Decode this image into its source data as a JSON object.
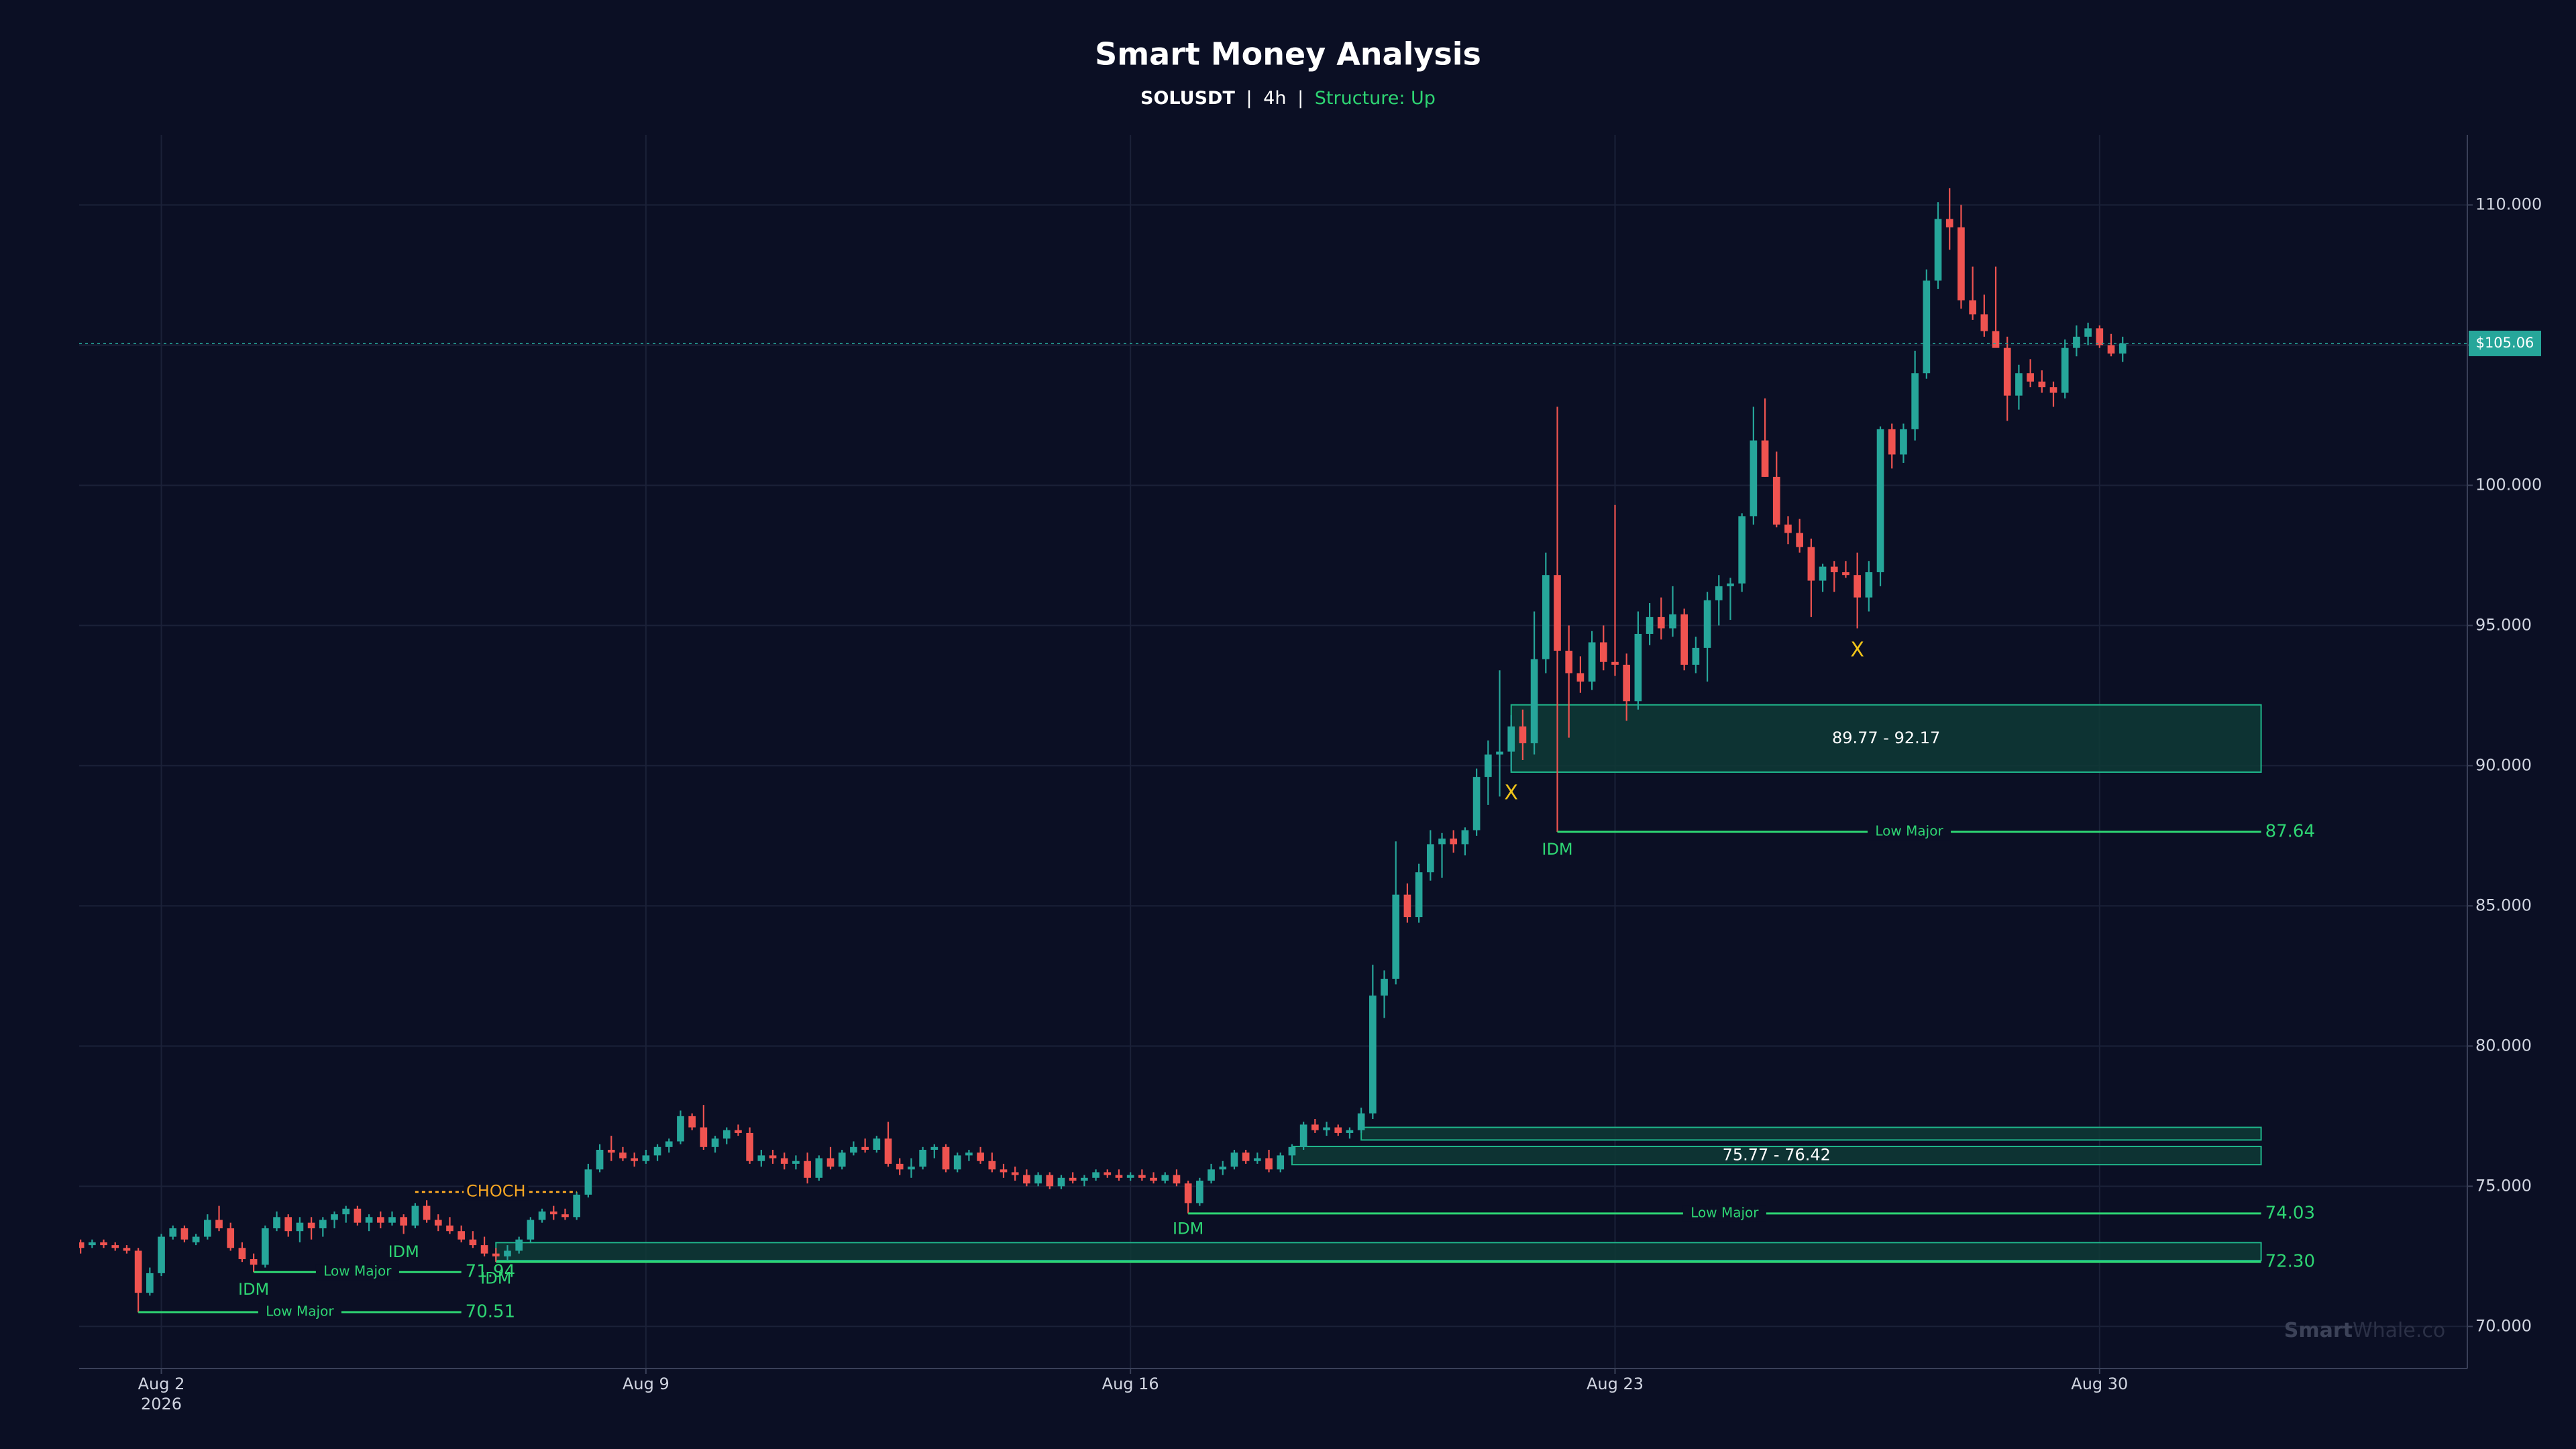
{
  "chart_data": {
    "type": "candlestick",
    "title": "Smart Money Analysis",
    "subtitle": {
      "symbol": "SOLUSDT",
      "separator": "|",
      "timeframe": "4h",
      "structure": "Structure: Up"
    },
    "x": [
      -4,
      0,
      4,
      8,
      12,
      16,
      20,
      24,
      28,
      32,
      36,
      40,
      44,
      48,
      52,
      56,
      60,
      64,
      68,
      72,
      76,
      80,
      84,
      88,
      92,
      96,
      100,
      104,
      108,
      112,
      116,
      120,
      124,
      128,
      132,
      136,
      140,
      144,
      148,
      152,
      156,
      160,
      164,
      168,
      172,
      176,
      180,
      184,
      188,
      192,
      196,
      200,
      204,
      208,
      212,
      216,
      220,
      224,
      228,
      232,
      236,
      240,
      244,
      248,
      252,
      256,
      260,
      264,
      268,
      272,
      276,
      280,
      284,
      288,
      292,
      296,
      300,
      304,
      308,
      312,
      316,
      320,
      324,
      328,
      332,
      336,
      340,
      344,
      348,
      352,
      356,
      360,
      364,
      368,
      372,
      376,
      380,
      384,
      388,
      392,
      396,
      400,
      404,
      408,
      412,
      416,
      420,
      424,
      428,
      432,
      436,
      440,
      444,
      448,
      452,
      456,
      460,
      464,
      468,
      472,
      476,
      480,
      484,
      488,
      492,
      496,
      500,
      504,
      508,
      512,
      516,
      520,
      524,
      528,
      532,
      536,
      540,
      544,
      548,
      552,
      556,
      560,
      564,
      568,
      572,
      576,
      580,
      584,
      588,
      592,
      596,
      600,
      604,
      608,
      612,
      616,
      620,
      624,
      628,
      632,
      636,
      640,
      644,
      648,
      652,
      656,
      660,
      664,
      668,
      672,
      676,
      680,
      684,
      688,
      692,
      696,
      700,
      704
    ],
    "open": [
      73.0,
      72.9,
      73.0,
      72.9,
      72.8,
      72.7,
      71.2,
      71.9,
      73.2,
      73.5,
      73.0,
      73.2,
      73.8,
      73.5,
      72.8,
      72.4,
      72.2,
      73.5,
      73.9,
      73.4,
      73.7,
      73.5,
      73.8,
      74.0,
      74.2,
      73.7,
      73.9,
      73.7,
      73.9,
      73.6,
      74.3,
      73.8,
      73.6,
      73.4,
      73.1,
      72.9,
      72.6,
      72.5,
      72.7,
      73.1,
      73.8,
      74.1,
      74.0,
      73.9,
      74.7,
      75.6,
      76.3,
      76.2,
      76.0,
      75.9,
      76.1,
      76.4,
      76.6,
      77.5,
      77.1,
      76.4,
      76.7,
      77.0,
      76.9,
      75.9,
      76.1,
      76.0,
      75.8,
      75.9,
      75.3,
      76.0,
      75.7,
      76.2,
      76.4,
      76.3,
      76.7,
      75.8,
      75.6,
      75.7,
      76.3,
      76.4,
      75.6,
      76.1,
      76.2,
      75.9,
      75.6,
      75.5,
      75.4,
      75.1,
      75.4,
      75.0,
      75.3,
      75.2,
      75.3,
      75.5,
      75.4,
      75.3,
      75.4,
      75.3,
      75.2,
      75.4,
      75.1,
      74.4,
      75.2,
      75.6,
      75.7,
      76.2,
      75.9,
      76.0,
      75.6,
      76.1,
      76.4,
      77.2,
      77.0,
      77.1,
      76.9,
      77.0,
      77.6,
      81.8,
      82.4,
      85.4,
      84.6,
      86.2,
      87.2,
      87.4,
      87.2,
      87.7,
      89.6,
      90.4,
      90.5,
      91.4,
      90.8,
      93.8,
      96.8,
      94.1,
      93.3,
      93.0,
      94.4,
      93.7,
      93.6,
      92.3,
      94.7,
      95.3,
      94.9,
      95.4,
      93.6,
      94.2,
      95.9,
      96.4,
      96.5,
      98.9,
      101.6,
      100.3,
      98.6,
      98.3,
      97.8,
      96.6,
      97.1,
      96.9,
      96.8,
      96.0,
      96.9,
      102.0,
      101.1,
      102.0,
      104.0,
      107.3,
      109.5,
      109.2,
      106.6,
      106.1,
      105.5,
      104.9,
      103.2,
      104.0,
      103.7,
      103.5,
      103.3,
      104.9,
      105.3,
      105.6,
      105.0,
      104.7
    ],
    "high": [
      73.1,
      73.1,
      73.1,
      73.0,
      72.9,
      72.8,
      72.1,
      73.3,
      73.6,
      73.6,
      73.3,
      74.0,
      74.3,
      73.7,
      73.0,
      72.6,
      73.6,
      74.1,
      74.0,
      73.9,
      73.9,
      73.9,
      74.1,
      74.3,
      74.3,
      74.0,
      74.1,
      74.1,
      74.0,
      74.4,
      74.5,
      74.0,
      73.9,
      73.6,
      73.4,
      73.2,
      72.8,
      72.9,
      73.2,
      73.9,
      74.2,
      74.3,
      74.2,
      74.8,
      75.8,
      76.5,
      76.8,
      76.4,
      76.2,
      76.3,
      76.5,
      76.7,
      77.7,
      77.6,
      77.9,
      76.8,
      77.1,
      77.2,
      77.1,
      76.3,
      76.3,
      76.2,
      76.1,
      76.2,
      76.1,
      76.4,
      76.3,
      76.6,
      76.7,
      76.8,
      77.3,
      76.0,
      76.0,
      76.4,
      76.5,
      76.5,
      76.2,
      76.3,
      76.4,
      76.2,
      75.8,
      75.7,
      75.6,
      75.5,
      75.5,
      75.4,
      75.5,
      75.4,
      75.6,
      75.6,
      75.6,
      75.5,
      75.6,
      75.5,
      75.5,
      75.6,
      75.2,
      75.3,
      75.8,
      75.9,
      76.3,
      76.3,
      76.2,
      76.3,
      76.2,
      76.5,
      77.3,
      77.4,
      77.3,
      77.2,
      77.1,
      77.8,
      82.9,
      82.7,
      87.3,
      85.8,
      86.5,
      87.7,
      87.6,
      87.7,
      87.8,
      89.9,
      90.9,
      93.4,
      91.8,
      92.0,
      95.5,
      97.6,
      102.8,
      95.0,
      93.9,
      94.8,
      95.0,
      99.3,
      94.0,
      95.5,
      95.8,
      96.0,
      96.4,
      95.6,
      94.6,
      96.2,
      96.8,
      96.7,
      99.0,
      102.8,
      103.1,
      101.2,
      98.9,
      98.8,
      98.1,
      97.2,
      97.3,
      97.3,
      97.6,
      97.3,
      102.1,
      102.2,
      102.2,
      104.8,
      107.7,
      110.1,
      110.6,
      110.0,
      107.8,
      106.8,
      107.8,
      105.3,
      104.3,
      104.5,
      104.1,
      103.7,
      105.2,
      105.7,
      105.8,
      105.7,
      105.4,
      105.3
    ],
    "low": [
      72.6,
      72.8,
      72.8,
      72.7,
      72.6,
      70.5,
      71.1,
      71.8,
      73.1,
      73.0,
      72.9,
      73.1,
      73.4,
      72.7,
      72.3,
      71.94,
      72.1,
      73.4,
      73.2,
      73.0,
      73.1,
      73.2,
      73.5,
      73.7,
      73.6,
      73.4,
      73.5,
      73.6,
      73.3,
      73.5,
      73.7,
      73.4,
      73.3,
      73.0,
      72.8,
      72.5,
      72.3,
      72.3,
      72.6,
      73.0,
      73.7,
      73.8,
      73.8,
      73.8,
      74.6,
      75.5,
      75.9,
      75.9,
      75.7,
      75.8,
      75.9,
      76.2,
      76.5,
      77.0,
      76.3,
      76.2,
      76.5,
      76.8,
      75.8,
      75.7,
      75.8,
      75.6,
      75.6,
      75.1,
      75.2,
      75.6,
      75.6,
      76.1,
      76.2,
      76.2,
      75.7,
      75.4,
      75.3,
      75.6,
      76.0,
      75.5,
      75.5,
      75.9,
      75.8,
      75.5,
      75.3,
      75.2,
      75.0,
      75.0,
      74.9,
      74.9,
      75.1,
      75.0,
      75.2,
      75.3,
      75.2,
      75.2,
      75.2,
      75.1,
      75.1,
      75.0,
      74.03,
      74.3,
      75.1,
      75.4,
      75.6,
      75.8,
      75.8,
      75.5,
      75.5,
      75.9,
      76.3,
      76.9,
      76.8,
      76.8,
      76.7,
      76.9,
      77.4,
      81.0,
      82.2,
      84.4,
      84.4,
      85.9,
      86.0,
      86.9,
      86.8,
      87.5,
      88.6,
      88.9,
      89.8,
      90.2,
      90.4,
      93.3,
      87.64,
      91.0,
      92.6,
      92.7,
      93.4,
      93.2,
      91.6,
      92.0,
      94.3,
      94.5,
      94.6,
      93.4,
      93.3,
      93.0,
      95.0,
      95.2,
      96.2,
      98.6,
      100.3,
      98.5,
      97.9,
      97.6,
      95.3,
      96.2,
      96.2,
      96.7,
      94.9,
      95.5,
      96.4,
      100.6,
      100.8,
      101.6,
      103.8,
      107.0,
      108.4,
      106.3,
      105.9,
      105.3,
      105.0,
      102.3,
      102.7,
      103.5,
      103.3,
      102.8,
      103.1,
      104.6,
      105.0,
      104.9,
      104.6,
      104.4
    ],
    "close": [
      72.8,
      73.0,
      72.9,
      72.8,
      72.7,
      71.2,
      71.9,
      73.2,
      73.5,
      73.1,
      73.2,
      73.8,
      73.5,
      72.8,
      72.4,
      72.2,
      73.5,
      73.9,
      73.4,
      73.7,
      73.5,
      73.8,
      74.0,
      74.2,
      73.7,
      73.9,
      73.7,
      73.9,
      73.6,
      74.3,
      73.8,
      73.6,
      73.4,
      73.1,
      72.9,
      72.6,
      72.5,
      72.7,
      73.1,
      73.8,
      74.1,
      74.0,
      73.9,
      74.7,
      75.6,
      76.3,
      76.2,
      76.0,
      75.9,
      76.1,
      76.4,
      76.6,
      77.5,
      77.1,
      76.4,
      76.7,
      77.0,
      76.9,
      75.9,
      76.1,
      76.0,
      75.8,
      75.9,
      75.3,
      76.0,
      75.7,
      76.2,
      76.4,
      76.3,
      76.7,
      75.8,
      75.6,
      75.7,
      76.3,
      76.4,
      75.6,
      76.1,
      76.2,
      75.9,
      75.6,
      75.5,
      75.4,
      75.1,
      75.4,
      75.0,
      75.3,
      75.2,
      75.3,
      75.5,
      75.4,
      75.3,
      75.4,
      75.3,
      75.2,
      75.4,
      75.1,
      74.4,
      75.2,
      75.6,
      75.7,
      76.2,
      75.9,
      76.0,
      75.6,
      76.1,
      76.4,
      77.2,
      77.0,
      77.1,
      76.9,
      77.0,
      77.6,
      81.8,
      82.4,
      85.4,
      84.6,
      86.2,
      87.2,
      87.4,
      87.2,
      87.7,
      89.6,
      90.4,
      90.5,
      91.4,
      90.8,
      93.8,
      96.8,
      94.1,
      93.3,
      93.0,
      94.4,
      93.7,
      93.6,
      92.3,
      94.7,
      95.3,
      94.9,
      95.4,
      93.6,
      94.2,
      95.9,
      96.4,
      96.5,
      98.9,
      101.6,
      100.3,
      98.6,
      98.3,
      97.8,
      96.6,
      97.1,
      96.9,
      96.8,
      96.0,
      96.9,
      102.0,
      101.1,
      102.0,
      104.0,
      107.3,
      109.5,
      109.2,
      106.6,
      106.1,
      105.5,
      104.9,
      103.2,
      104.0,
      103.7,
      103.5,
      103.3,
      104.9,
      105.3,
      105.6,
      105.0,
      104.7,
      105.06
    ],
    "colors": {
      "up": "#26a69a",
      "down": "#ef5350"
    },
    "xlim": [
      -4.5,
      823.5
    ],
    "xticks": [
      {
        "value": 24,
        "label": "Aug 2"
      },
      {
        "value": 192,
        "label": "Aug 9"
      },
      {
        "value": 360,
        "label": "Aug 16"
      },
      {
        "value": 528,
        "label": "Aug 23"
      },
      {
        "value": 696,
        "label": "Aug 30"
      }
    ],
    "xtick_year": "2026",
    "ylim": [
      68.5,
      112.5
    ],
    "yticks": [
      {
        "value": 70,
        "label": "70.000"
      },
      {
        "value": 75,
        "label": "75.000"
      },
      {
        "value": 80,
        "label": "80.000"
      },
      {
        "value": 85,
        "label": "85.000"
      },
      {
        "value": 90,
        "label": "90.000"
      },
      {
        "value": 95,
        "label": "95.000"
      },
      {
        "value": 100,
        "label": "100.000"
      },
      {
        "value": 105,
        "label": "105.000"
      },
      {
        "value": 110,
        "label": "110.000"
      }
    ],
    "grid": true,
    "price_line": {
      "value": 105.06,
      "label": "$105.06"
    },
    "zones": [
      {
        "x": [
          492,
          752
        ],
        "low": 89.77,
        "high": 92.17,
        "label": "89.77 - 92.17"
      },
      {
        "x": [
          440,
          752
        ],
        "low": 76.65,
        "high": 77.1
      },
      {
        "x": [
          416,
          752
        ],
        "low": 75.77,
        "high": 76.42,
        "label": "75.77 - 76.42"
      },
      {
        "x": [
          140,
          752
        ],
        "low": 72.35,
        "high": 72.99
      }
    ],
    "levels": [
      {
        "name": "Low Major",
        "value": 87.64,
        "label": "87.64",
        "x": [
          508,
          752
        ]
      },
      {
        "name": "Low Major",
        "value": 74.03,
        "label": "74.03",
        "x": [
          380,
          752
        ]
      },
      {
        "value": 72.3,
        "label": "72.30",
        "x": [
          140,
          752
        ]
      },
      {
        "name": "Low Major",
        "value": 71.94,
        "label": "71.94",
        "x": [
          56,
          128
        ]
      },
      {
        "name": "Low Major",
        "value": 70.51,
        "label": "70.51",
        "x": [
          16,
          128
        ]
      }
    ],
    "choch": {
      "text": "CHOCH",
      "value": 74.8,
      "x": [
        112,
        168
      ]
    },
    "annotations": [
      {
        "text": "IDM",
        "x": 508,
        "y": 87.0
      },
      {
        "text": "IDM",
        "x": 380,
        "y": 73.46
      },
      {
        "text": "IDM",
        "x": 56,
        "y": 71.3
      },
      {
        "text": "IDM",
        "x": 108,
        "y": 72.64
      },
      {
        "text": "IDM",
        "x": 140,
        "y": 71.7
      }
    ],
    "markers": [
      {
        "text": "X",
        "x": 492,
        "y": 89.0
      },
      {
        "text": "X",
        "x": 612,
        "y": 94.1
      }
    ],
    "watermark": {
      "bold": "Smart",
      "rest": "Whale.co"
    }
  }
}
